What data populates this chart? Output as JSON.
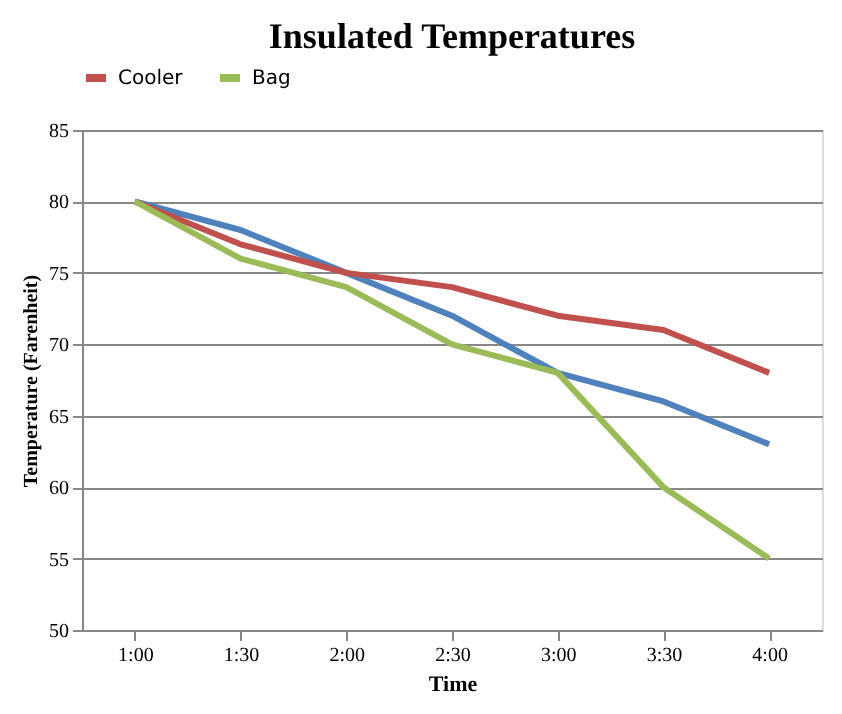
{
  "chart_data": {
    "type": "line",
    "title": "Insulated Temperatures",
    "xlabel": "Time",
    "ylabel": "Temperature (Farenheit)",
    "categories": [
      "1:00",
      "1:30",
      "2:00",
      "2:30",
      "3:00",
      "3:30",
      "4:00"
    ],
    "series": [
      {
        "color": "#4f81bd",
        "values": [
          80,
          78,
          75,
          72,
          68,
          66,
          63
        ]
      },
      {
        "name": "Cooler",
        "color": "#c0504d",
        "values": [
          80,
          77,
          75,
          74,
          72,
          71,
          68
        ]
      },
      {
        "name": "Bag",
        "color": "#9bbb59",
        "values": [
          80,
          76,
          74,
          70,
          68,
          60,
          55
        ]
      }
    ],
    "ylim": [
      50,
      85
    ],
    "yticks": [
      50,
      55,
      60,
      65,
      70,
      75,
      80,
      85
    ],
    "grid": "y",
    "legend": "top",
    "marker": "none",
    "line_style": "solid"
  }
}
